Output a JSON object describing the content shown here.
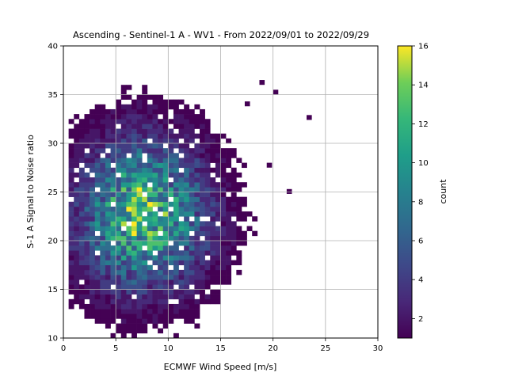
{
  "chart_data": {
    "type": "heatmap",
    "title": "Ascending - Sentinel-1 A - WV1 - From 2022/09/01 to 2022/09/29",
    "xlabel": "ECMWF Wind Speed [m/s]",
    "ylabel": "S-1 A Signal to Noise ratio",
    "xlim": [
      0,
      30
    ],
    "ylim": [
      10,
      40
    ],
    "xticks": [
      "0",
      "5",
      "10",
      "15",
      "20",
      "25",
      "30"
    ],
    "yticks": [
      "10",
      "15",
      "20",
      "25",
      "30",
      "35",
      "40"
    ],
    "grid": true,
    "bin_size": {
      "x": 0.5,
      "y": 0.5
    },
    "colormap": "viridis",
    "colorbar": {
      "label": "count",
      "range": [
        1,
        16
      ],
      "ticks": [
        "2",
        "4",
        "6",
        "8",
        "10",
        "12",
        "14",
        "16"
      ]
    },
    "density_model": {
      "peak_count": 15,
      "peak_x": 7.5,
      "peak_y": 22.5,
      "data_x_range": [
        0.5,
        23
      ],
      "data_y_range": [
        10,
        37.5
      ]
    },
    "outlier_points": [
      {
        "x": 23.2,
        "y": 32.4
      },
      {
        "x": 21.3,
        "y": 24.8
      },
      {
        "x": 20.0,
        "y": 35.0
      },
      {
        "x": 19.4,
        "y": 27.5
      },
      {
        "x": 18.7,
        "y": 36.0
      },
      {
        "x": 17.3,
        "y": 33.8
      }
    ]
  }
}
